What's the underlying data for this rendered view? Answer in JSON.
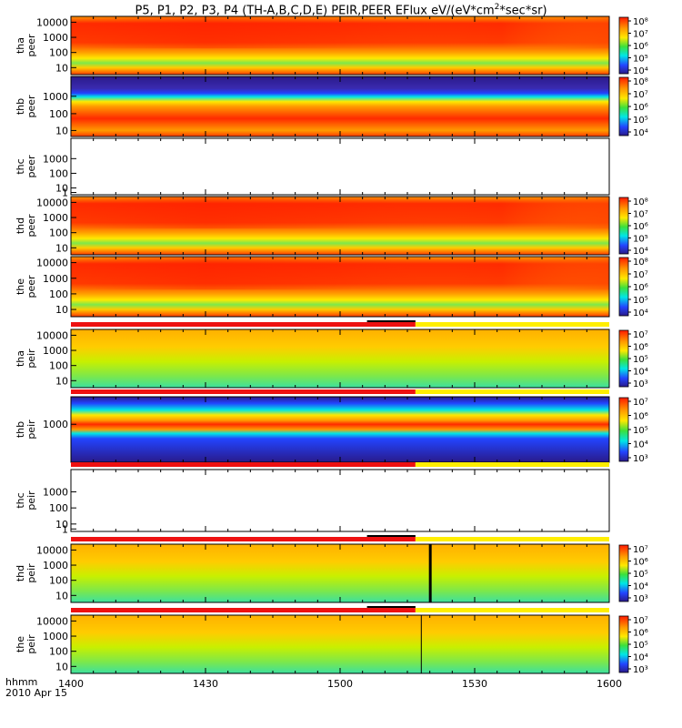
{
  "title": {
    "prefix": "P5, P1, P2, P3, P4 (TH-A,B,C,D,E) PEIR,PEER EFlux eV/(eV*cm",
    "sup": "2",
    "suffix": "*sec*sr)"
  },
  "footer": {
    "line1": "hhmm",
    "line2": "2010 Apr 15"
  },
  "colors": {
    "red": "#ff1a00",
    "dark_red": "#dc0000",
    "orange": "#ff9a00",
    "yellow": "#ffe800",
    "yellow_green": "#c8f000",
    "green": "#3ce03c",
    "cyan": "#00e6e6",
    "blue": "#2244ff",
    "purple": "#2a1a8a",
    "white": "#ffffff",
    "status_red": "#ee1111",
    "status_yellow": "#ffee00"
  },
  "chart_data": {
    "type": "heatmap",
    "time_axis": {
      "label_line1": "hhmm",
      "label_line2": "2010 Apr 15",
      "ticks": [
        "1400",
        "1430",
        "1500",
        "1530",
        "1600"
      ],
      "start": "1400",
      "end": "1600"
    },
    "panels": [
      {
        "id": "tha-peer",
        "label": [
          "tha",
          "peer"
        ],
        "y_ticks": [
          "10000",
          "1000",
          "100",
          "10"
        ],
        "cbar_ticks": [
          "10⁸",
          "10⁷",
          "10⁶",
          "10⁵",
          "10⁴"
        ],
        "status_bar": false,
        "empty": false
      },
      {
        "id": "thb-peer",
        "label": [
          "thb",
          "peer"
        ],
        "y_ticks": [
          "1000",
          "100",
          "10"
        ],
        "cbar_ticks": [
          "10⁸",
          "10⁷",
          "10⁶",
          "10⁵",
          "10⁴"
        ],
        "status_bar": false,
        "empty": false
      },
      {
        "id": "thc-peer",
        "label": [
          "thc",
          "peer"
        ],
        "y_ticks": [
          "1000",
          "100",
          "10",
          "1"
        ],
        "cbar_ticks": [],
        "status_bar": false,
        "empty": true
      },
      {
        "id": "thd-peer",
        "label": [
          "thd",
          "peer"
        ],
        "y_ticks": [
          "10000",
          "1000",
          "100",
          "10"
        ],
        "cbar_ticks": [
          "10⁸",
          "10⁷",
          "10⁶",
          "10⁵",
          "10⁴"
        ],
        "status_bar": false,
        "empty": false
      },
      {
        "id": "the-peer",
        "label": [
          "the",
          "peer"
        ],
        "y_ticks": [
          "10000",
          "1000",
          "100",
          "10"
        ],
        "cbar_ticks": [
          "10⁸",
          "10⁷",
          "10⁶",
          "10⁵",
          "10⁴"
        ],
        "status_bar": false,
        "empty": false
      },
      {
        "id": "tha-peir",
        "label": [
          "tha",
          "peir"
        ],
        "y_ticks": [
          "10000",
          "1000",
          "100",
          "10"
        ],
        "cbar_ticks": [
          "10⁷",
          "10⁶",
          "10⁵",
          "10⁴",
          "10³"
        ],
        "status_bar": true,
        "empty": false
      },
      {
        "id": "thb-peir",
        "label": [
          "thb",
          "peir"
        ],
        "y_ticks": [
          "1000"
        ],
        "cbar_ticks": [
          "10⁷",
          "10⁶",
          "10⁵",
          "10⁴",
          "10³"
        ],
        "status_bar": true,
        "empty": false
      },
      {
        "id": "thc-peir",
        "label": [
          "thc",
          "peir"
        ],
        "y_ticks": [
          "1000",
          "100",
          "10",
          "1"
        ],
        "cbar_ticks": [],
        "status_bar": true,
        "empty": true
      },
      {
        "id": "thd-peir",
        "label": [
          "thd",
          "peir"
        ],
        "y_ticks": [
          "10000",
          "1000",
          "100",
          "10"
        ],
        "cbar_ticks": [
          "10⁷",
          "10⁶",
          "10⁵",
          "10⁴",
          "10³"
        ],
        "status_bar": true,
        "empty": false
      },
      {
        "id": "the-peir",
        "label": [
          "the",
          "peir"
        ],
        "y_ticks": [
          "10000",
          "1000",
          "100",
          "10"
        ],
        "cbar_ticks": [
          "10⁷",
          "10⁶",
          "10⁵",
          "10⁴",
          "10³"
        ],
        "status_bar": true,
        "empty": false
      }
    ]
  }
}
